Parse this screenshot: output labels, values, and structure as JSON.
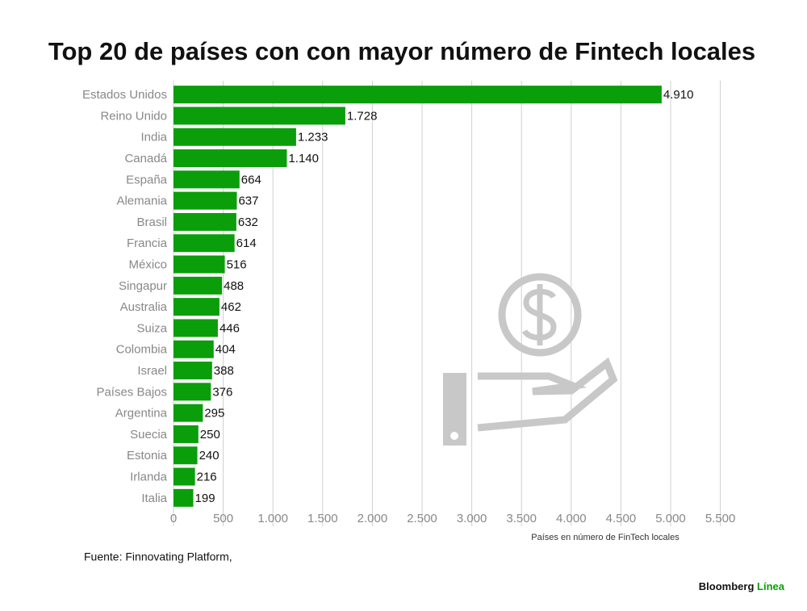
{
  "chart_data": {
    "type": "barh",
    "title": "Top 20 de países con con mayor número de Fintech locales",
    "categories": [
      "Estados Unidos",
      "Reino Unido",
      "India",
      "Canadá",
      "España",
      "Alemania",
      "Brasil",
      "Francia",
      "México",
      "Singapur",
      "Australia",
      "Suiza",
      "Colombia",
      "Israel",
      "Países Bajos",
      "Argentina",
      "Suecia",
      "Estonia",
      "Irlanda",
      "Italia"
    ],
    "values": [
      4910,
      1728,
      1233,
      1140,
      664,
      637,
      632,
      614,
      516,
      488,
      462,
      446,
      404,
      388,
      376,
      295,
      250,
      240,
      216,
      199
    ],
    "value_labels": [
      "4.910",
      "1.728",
      "1.233",
      "1.140",
      "664",
      "637",
      "632",
      "614",
      "516",
      "488",
      "462",
      "446",
      "404",
      "388",
      "376",
      "295",
      "250",
      "240",
      "216",
      "199"
    ],
    "color": "#0a9e0a",
    "xlim": [
      0,
      5500
    ],
    "xticks": [
      0,
      500,
      {
        "value": 1000,
        "label": "1.000"
      },
      {
        "value": 1500,
        "label": "1.500"
      },
      {
        "value": 2000,
        "label": "2.000"
      },
      {
        "value": 2500,
        "label": "2.500"
      },
      {
        "value": 3000,
        "label": "3.000"
      },
      {
        "value": 3500,
        "label": "3.500"
      },
      {
        "value": 4000,
        "label": "4.000"
      },
      {
        "value": 4500,
        "label": "4.500"
      },
      {
        "value": 5000,
        "label": "5.000"
      },
      {
        "value": 5500,
        "label": "5.500"
      }
    ],
    "grid": true,
    "xlabel": "Países en número de FinTech locales",
    "source": "Fuente: Finnovating Platform,",
    "brand": "Bloomberg",
    "brand_accent": "Línea"
  }
}
